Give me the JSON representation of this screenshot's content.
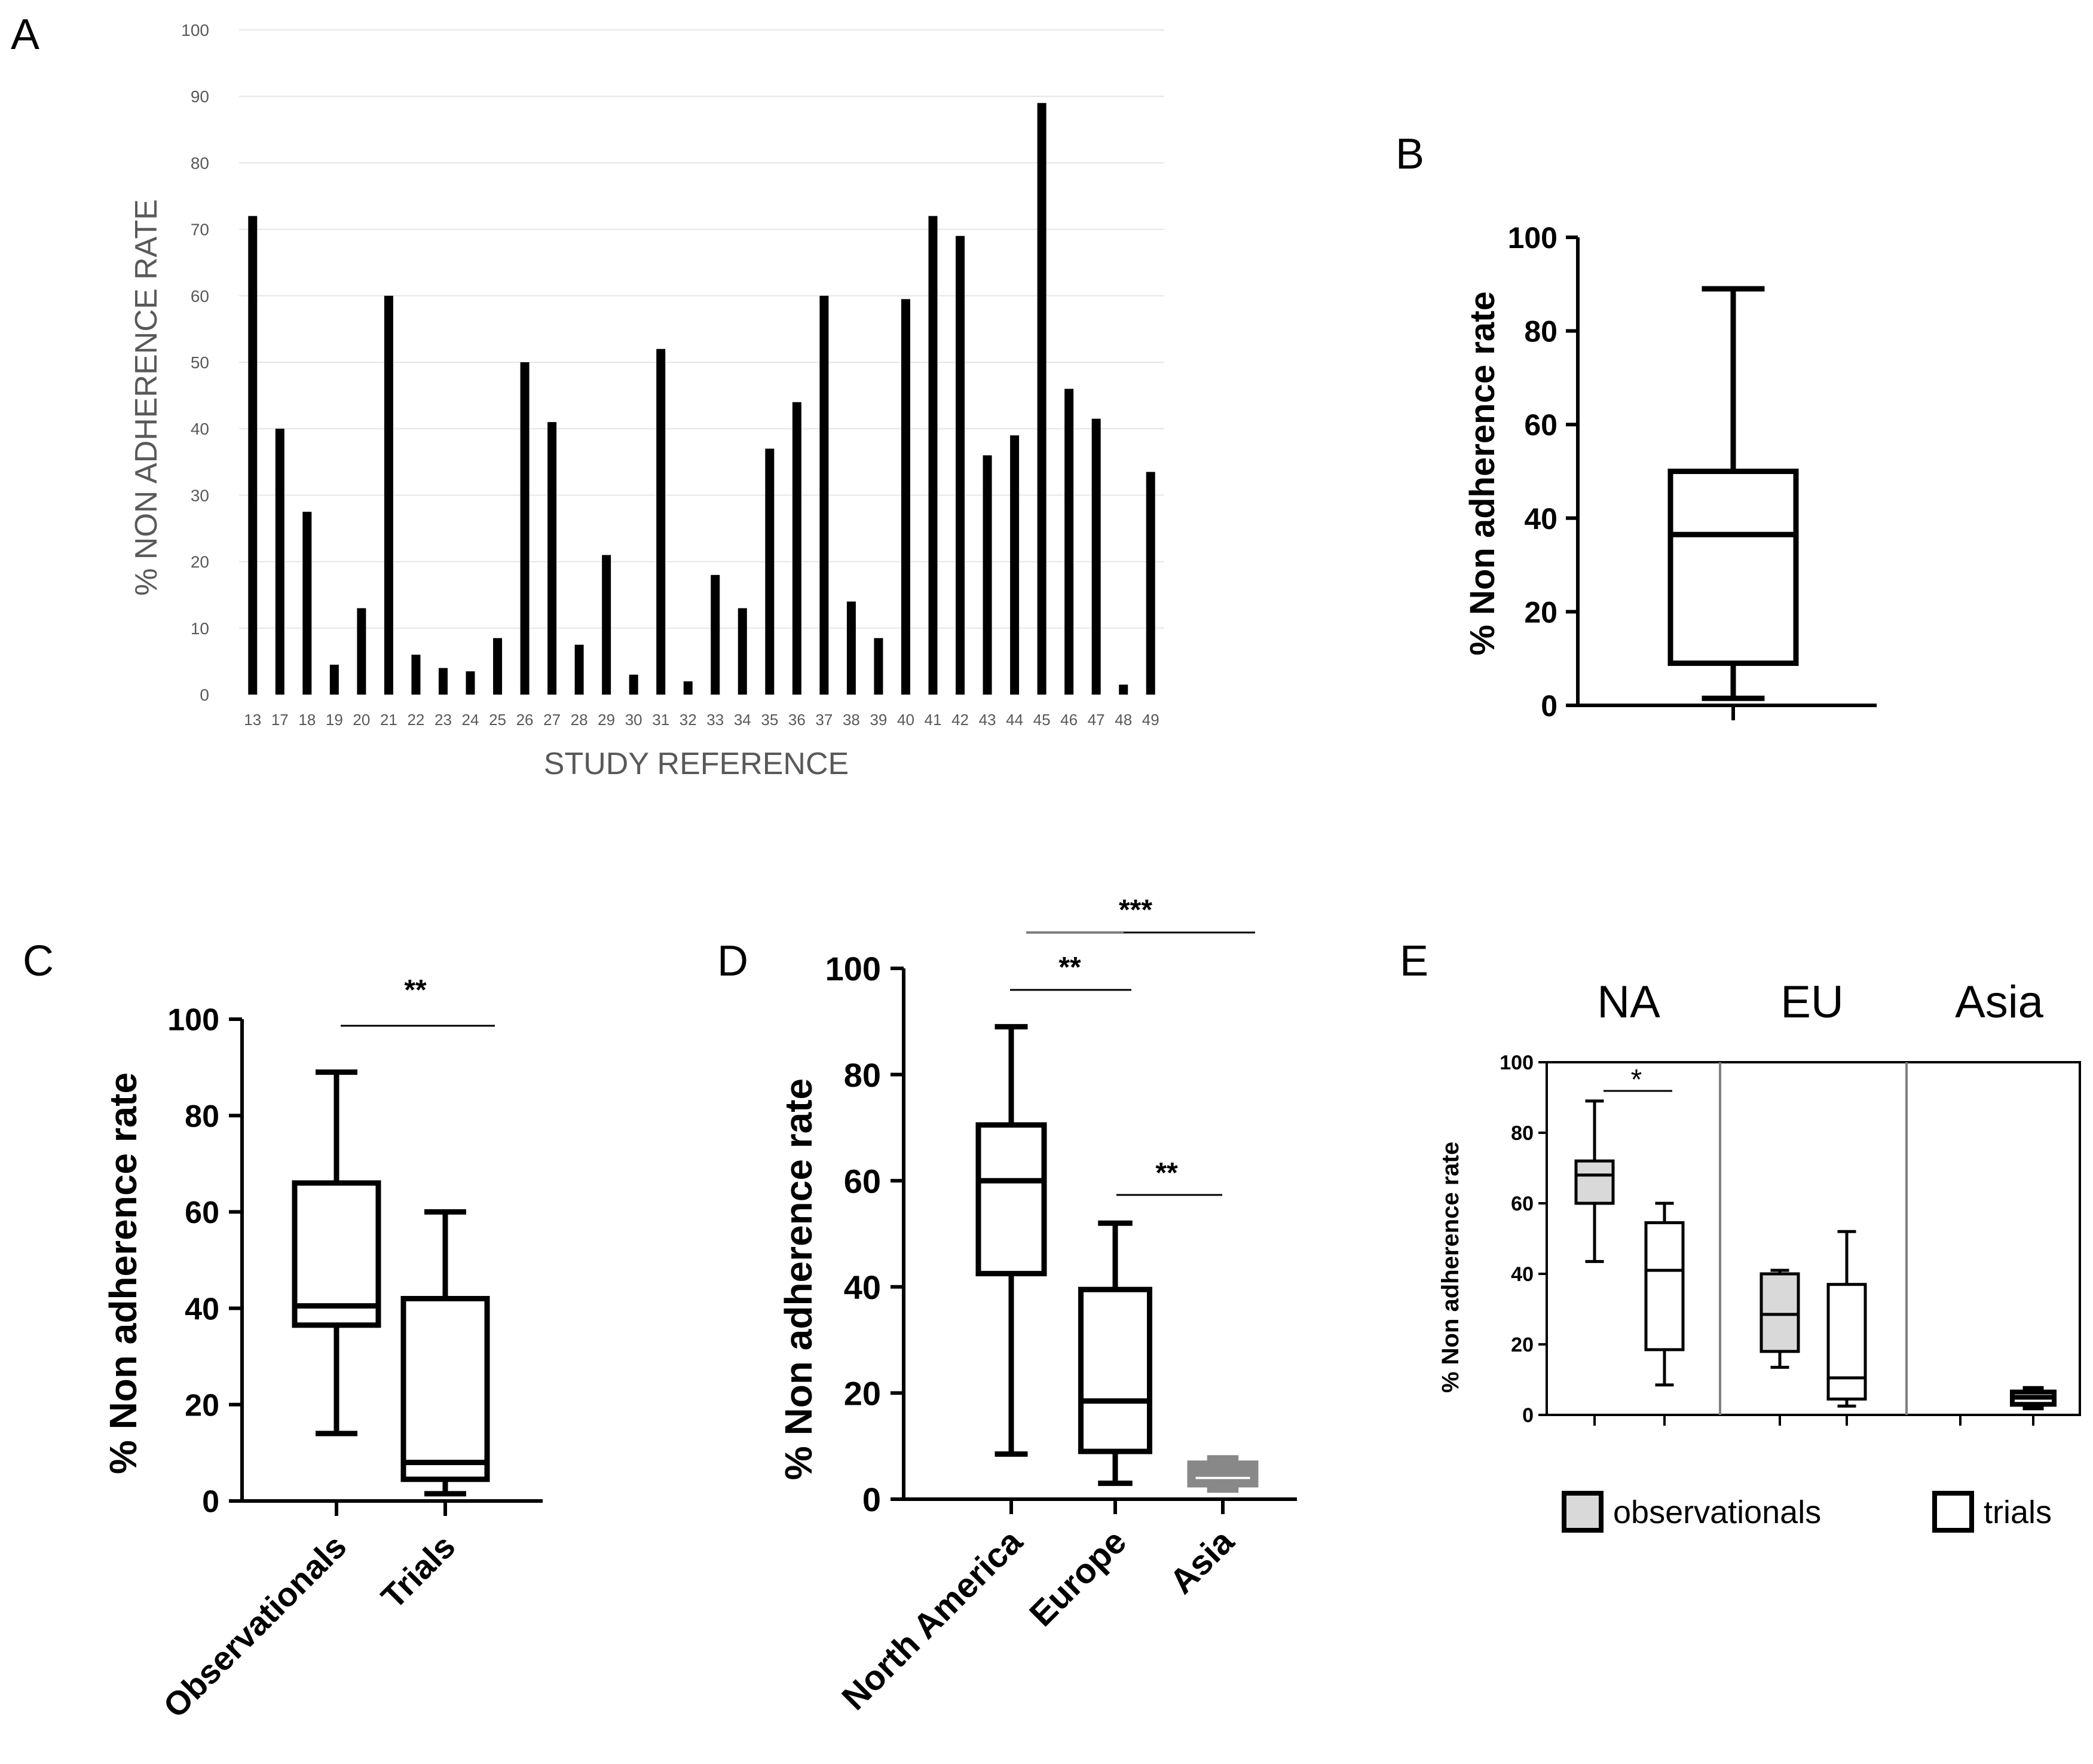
{
  "chart_data": [
    {
      "panel": "A",
      "type": "bar",
      "title": "",
      "xlabel": "STUDY REFERENCE",
      "ylabel": "% NON ADHERENCE RATE",
      "ylim": [
        0,
        100
      ],
      "yticks": [
        "0",
        "10",
        "20",
        "30",
        "40",
        "50",
        "60",
        "70",
        "80",
        "90",
        "100"
      ],
      "grid": true,
      "categories": [
        "13",
        "17",
        "18",
        "19",
        "20",
        "21",
        "22",
        "23",
        "24",
        "25",
        "26",
        "27",
        "28",
        "29",
        "30",
        "31",
        "32",
        "33",
        "34",
        "35",
        "36",
        "37",
        "38",
        "39",
        "40",
        "41",
        "42",
        "43",
        "44",
        "45",
        "46",
        "47",
        "48",
        "49"
      ],
      "values": [
        72,
        40,
        27.5,
        4.5,
        13,
        60,
        6,
        4,
        3.5,
        8.5,
        50,
        41,
        7.5,
        21,
        3,
        52,
        2,
        18,
        13,
        37,
        44,
        60,
        14,
        8.5,
        59.5,
        72,
        69,
        36,
        39,
        89,
        46,
        41.5,
        1.5,
        33.5
      ]
    },
    {
      "panel": "B",
      "type": "box",
      "ylabel": "% Non adherence rate",
      "ylim": [
        0,
        100
      ],
      "yticks": [
        "0",
        "20",
        "40",
        "60",
        "80",
        "100"
      ],
      "boxes": [
        {
          "name": "",
          "min": 1.5,
          "q1": 9,
          "median": 36.5,
          "q3": 50,
          "max": 89
        }
      ]
    },
    {
      "panel": "C",
      "type": "box",
      "ylabel": "% Non adherence rate",
      "ylim": [
        0,
        100
      ],
      "yticks": [
        "0",
        "20",
        "40",
        "60",
        "80",
        "100"
      ],
      "boxes": [
        {
          "name": "Observationals",
          "min": 14,
          "q1": 36.5,
          "median": 40.5,
          "q3": 66,
          "max": 89
        },
        {
          "name": "Trials",
          "min": 1.5,
          "q1": 4.5,
          "median": 8,
          "q3": 42,
          "max": 60
        }
      ],
      "significance": [
        {
          "from": 0,
          "to": 1,
          "label": "**"
        }
      ]
    },
    {
      "panel": "D",
      "type": "box",
      "ylabel": "% Non adherence rate",
      "ylim": [
        0,
        100
      ],
      "yticks": [
        "0",
        "20",
        "40",
        "60",
        "80",
        "100"
      ],
      "boxes": [
        {
          "name": "North America",
          "min": 8.5,
          "q1": 42.5,
          "median": 60,
          "q3": 70.5,
          "max": 89,
          "color": "#000000"
        },
        {
          "name": "Europe",
          "min": 3,
          "q1": 9,
          "median": 18.5,
          "q3": 39.5,
          "max": 52,
          "color": "#000000"
        },
        {
          "name": "Asia",
          "min": 2,
          "q1": 3,
          "median": 5,
          "q3": 6.5,
          "max": 7.5,
          "color": "#888888"
        }
      ],
      "significance": [
        {
          "from": 0,
          "to": 1,
          "label": "**"
        },
        {
          "from": 1,
          "to": 2,
          "label": "**"
        },
        {
          "from": 0,
          "to": 2,
          "label": "***"
        }
      ]
    },
    {
      "panel": "E",
      "type": "box",
      "ylabel": "% Non adherence rate",
      "ylim": [
        0,
        100
      ],
      "yticks": [
        "0",
        "20",
        "40",
        "60",
        "80",
        "100"
      ],
      "groups": [
        "NA",
        "EU",
        "Asia"
      ],
      "legend": [
        {
          "label": "observationals",
          "fill": "#d9d9d9"
        },
        {
          "label": "trials",
          "fill": "#ffffff"
        }
      ],
      "boxes": [
        {
          "group": "NA",
          "series": "observationals",
          "min": 43.5,
          "q1": 60,
          "median": 68,
          "q3": 72,
          "max": 89,
          "fill": "#d9d9d9"
        },
        {
          "group": "NA",
          "series": "trials",
          "min": 8.5,
          "q1": 18.5,
          "median": 41,
          "q3": 54.5,
          "max": 60,
          "fill": "#ffffff"
        },
        {
          "group": "EU",
          "series": "observationals",
          "min": 13.5,
          "q1": 18,
          "median": 28.5,
          "q3": 40,
          "max": 41,
          "fill": "#d9d9d9"
        },
        {
          "group": "EU",
          "series": "trials",
          "min": 2.5,
          "q1": 4.5,
          "median": 10.5,
          "q3": 37,
          "max": 52,
          "fill": "#ffffff"
        },
        {
          "group": "Asia",
          "series": "trials",
          "min": 2,
          "q1": 3,
          "median": 5,
          "q3": 6.5,
          "max": 7.5,
          "fill": "#ffffff"
        }
      ],
      "significance": [
        {
          "group": "NA",
          "label": "*"
        }
      ]
    }
  ],
  "panel_labels": {
    "a": "A",
    "b": "B",
    "c": "C",
    "d": "D",
    "e": "E"
  },
  "colors": {
    "ink": "#000000",
    "grid": "#e6e6e6",
    "axis_text": "#595959",
    "observational_fill": "#d9d9d9",
    "asia_box": "#888888",
    "divider": "#808080"
  }
}
